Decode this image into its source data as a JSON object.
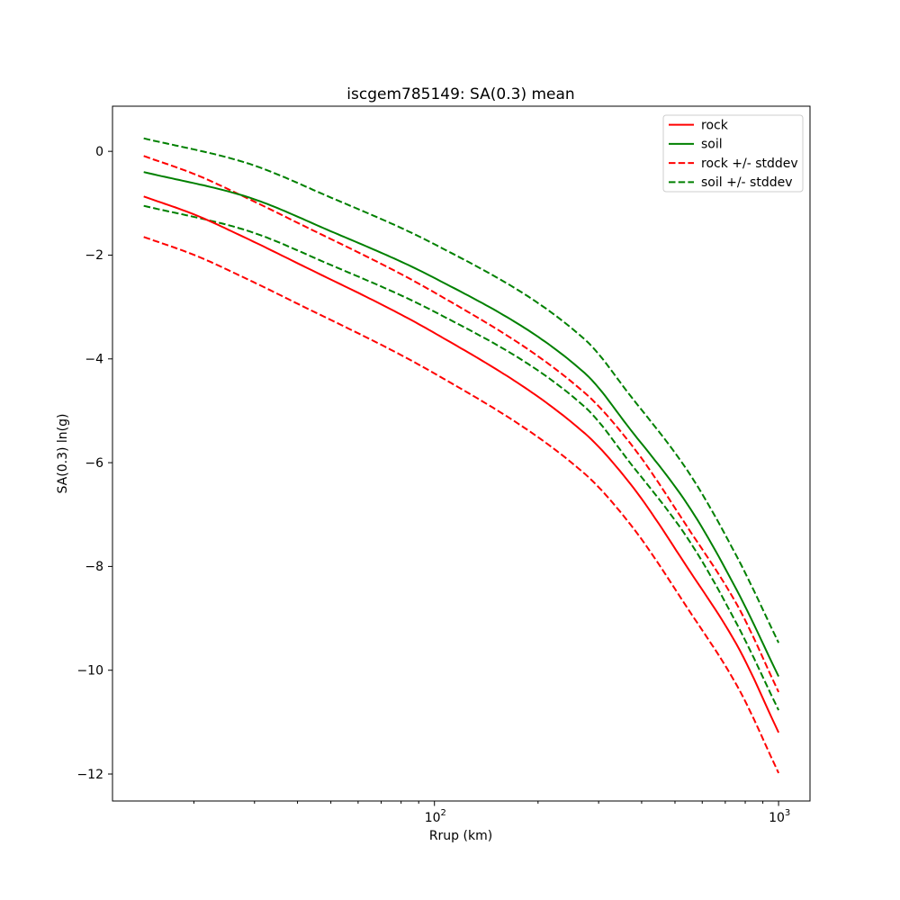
{
  "chart_data": {
    "type": "line",
    "title": "iscgem785149: SA(0.3) mean",
    "xlabel": "Rrup (km)",
    "ylabel": "SA(0.3) ln(g)",
    "x_scale": "log",
    "y_scale": "linear",
    "grid": false,
    "xlim": [
      11.6,
      1234
    ],
    "ylim": [
      -12.52,
      0.87
    ],
    "x_major_ticks": [
      100,
      1000
    ],
    "x_major_tick_labels": [
      {
        "base": "10",
        "exp": "2"
      },
      {
        "base": "10",
        "exp": "3"
      }
    ],
    "x_minor_ticks": [
      20,
      30,
      40,
      50,
      60,
      70,
      80,
      90,
      200,
      300,
      400,
      500,
      600,
      700,
      800,
      900
    ],
    "y_ticks": [
      0,
      -2,
      -4,
      -6,
      -8,
      -10,
      -12
    ],
    "y_tick_labels": [
      "0",
      "−2",
      "−4",
      "−6",
      "−8",
      "−10",
      "−12"
    ],
    "legend_position": "upper right",
    "series": [
      {
        "name": "rock",
        "label": "rock",
        "color": "#ff0000",
        "style": "solid",
        "role": "mean",
        "x_km": [
          14.3,
          20.1,
          27.7,
          39,
          100,
          274,
          370,
          547,
          762,
          1000
        ],
        "y": [
          -0.87,
          -1.22,
          -1.64,
          -2.12,
          -3.5,
          -5.44,
          -6.4,
          -8.05,
          -9.55,
          -11.2
        ]
      },
      {
        "name": "soil",
        "label": "soil",
        "color": "#008000",
        "style": "solid",
        "role": "mean",
        "x_km": [
          14.3,
          27.7,
          50,
          100,
          274,
          370,
          547,
          762,
          1000
        ],
        "y": [
          -0.4,
          -0.85,
          -1.54,
          -2.44,
          -4.28,
          -5.35,
          -6.83,
          -8.5,
          -10.12
        ]
      },
      {
        "name": "rock_stddev",
        "label": "rock +/- stddev",
        "color": "#ff0000",
        "style": "dashed",
        "role": "stddev_band",
        "derived_from": "rock",
        "stddev": 0.78
      },
      {
        "name": "soil_stddev",
        "label": "soil +/- stddev",
        "color": "#008000",
        "style": "dashed",
        "role": "stddev_band",
        "derived_from": "soil",
        "stddev": 0.65
      }
    ]
  }
}
